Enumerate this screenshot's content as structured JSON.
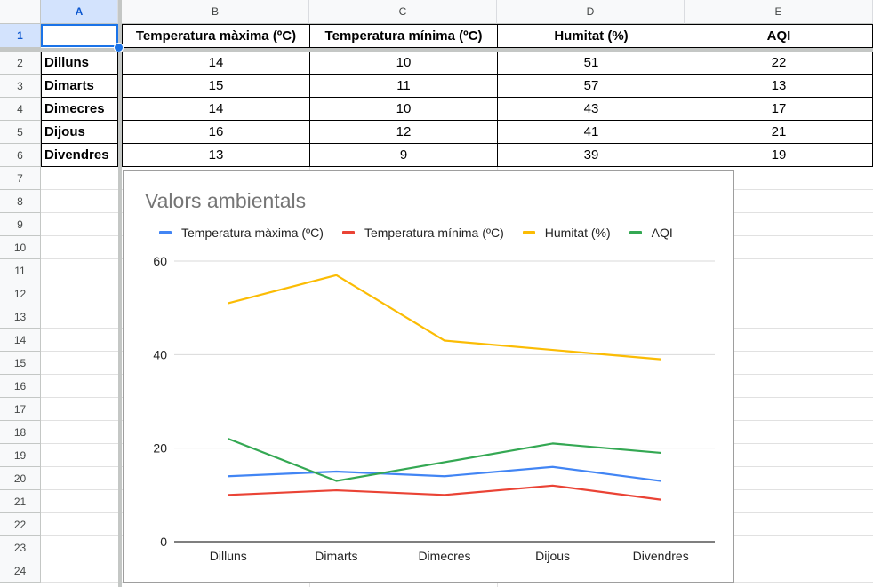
{
  "sheet": {
    "column_headers": [
      "A",
      "B",
      "C",
      "D",
      "E"
    ],
    "row_headers": [
      "1",
      "2",
      "3",
      "4",
      "5",
      "6",
      "7",
      "8",
      "9",
      "10",
      "11",
      "12",
      "13",
      "14",
      "15",
      "16",
      "17",
      "18",
      "19",
      "20",
      "21",
      "22",
      "23",
      "24"
    ],
    "selected_cell": "A1",
    "header_row": [
      "",
      "Temperatura màxima (ºC)",
      "Temperatura mínima (ºC)",
      "Humitat (%)",
      "AQI"
    ],
    "rows": [
      [
        "Dilluns",
        "14",
        "10",
        "51",
        "22"
      ],
      [
        "Dimarts",
        "15",
        "11",
        "57",
        "13"
      ],
      [
        "Dimecres",
        "14",
        "10",
        "43",
        "17"
      ],
      [
        "Dijous",
        "16",
        "12",
        "41",
        "21"
      ],
      [
        "Divendres",
        "13",
        "9",
        "39",
        "19"
      ]
    ]
  },
  "colors": {
    "selection": "#1a73e8",
    "series": [
      "#4285f4",
      "#ea4335",
      "#fbbc04",
      "#34a853"
    ]
  },
  "chart_data": {
    "type": "line",
    "title": "Valors ambientals",
    "categories": [
      "Dilluns",
      "Dimarts",
      "Dimecres",
      "Dijous",
      "Divendres"
    ],
    "series": [
      {
        "name": "Temperatura màxima (ºC)",
        "values": [
          14,
          15,
          14,
          16,
          13
        ],
        "color": "#4285f4"
      },
      {
        "name": "Temperatura mínima (ºC)",
        "values": [
          10,
          11,
          10,
          12,
          9
        ],
        "color": "#ea4335"
      },
      {
        "name": "Humitat (%)",
        "values": [
          51,
          57,
          43,
          41,
          39
        ],
        "color": "#fbbc04"
      },
      {
        "name": "AQI",
        "values": [
          22,
          13,
          17,
          21,
          19
        ],
        "color": "#34a853"
      }
    ],
    "yticks": [
      0,
      20,
      40,
      60
    ],
    "ylim": [
      0,
      60
    ],
    "xlabel": "",
    "ylabel": "",
    "grid": true,
    "legend": "top"
  }
}
